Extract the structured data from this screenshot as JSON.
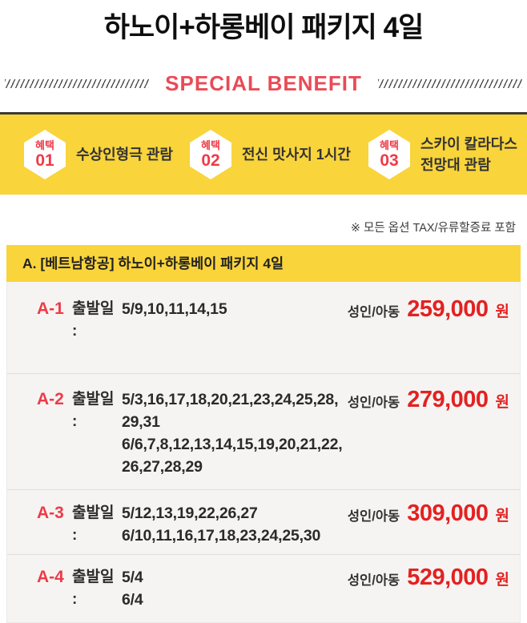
{
  "page": {
    "title": "하노이+하롱베이 패키지 4일"
  },
  "special_benefit": {
    "heading": "SPECIAL BENEFIT",
    "items": [
      {
        "badge_word": "혜택",
        "badge_num": "01",
        "label": "수상인형극 관람"
      },
      {
        "badge_word": "혜택",
        "badge_num": "02",
        "label": "전신 맛사지 1시간"
      },
      {
        "badge_word": "혜택",
        "badge_num": "03",
        "label": "스카이 칼라다스\n전망대 관람"
      }
    ]
  },
  "notice": "※ 모든 옵션 TAX/유류할증료 포함",
  "pricing_table": {
    "header": "A. [베트남항공] 하노이+하롱베이 패키지 4일",
    "date_label": "출발일 :",
    "price_label": "성인/아동",
    "currency_suffix": "원",
    "rows": [
      {
        "code": "A-1",
        "dates": [
          "5/9,10,11,14,15"
        ],
        "price": "259,000"
      },
      {
        "code": "A-2",
        "dates": [
          "5/3,16,17,18,20,21,23,24,25,28,",
          "29,31",
          "6/6,7,8,12,13,14,15,19,20,21,22,",
          "26,27,28,29"
        ],
        "price": "279,000"
      },
      {
        "code": "A-3",
        "dates": [
          "5/12,13,19,22,26,27",
          "6/10,11,16,17,18,23,24,25,30"
        ],
        "price": "309,000"
      },
      {
        "code": "A-4",
        "dates": [
          "5/4",
          "6/4"
        ],
        "price": "529,000"
      }
    ]
  },
  "colors": {
    "accent_yellow": "#f9d43b",
    "banner_top_border": "#3a3a38",
    "benefit_heading_red": "#ea4a57",
    "badge_red": "#ee3a48",
    "price_red": "#e32121"
  }
}
